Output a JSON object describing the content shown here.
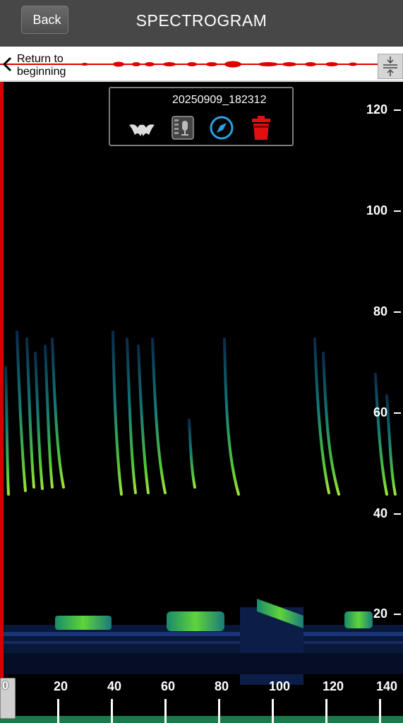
{
  "header": {
    "back_label": "Back",
    "title": "SPECTROGRAM"
  },
  "overview": {
    "return_label_line1": "Return to",
    "return_label_line2": "beginning"
  },
  "file_info": {
    "filename": "20250909_182312",
    "icons": [
      "bat-icon",
      "recorder-icon",
      "compass-icon",
      "trash-icon"
    ]
  },
  "y_axis": {
    "labels": [
      "120",
      "100",
      "80",
      "60",
      "40",
      "20"
    ]
  },
  "x_axis": {
    "labels": [
      "0",
      "20",
      "40",
      "60",
      "80",
      "100",
      "120",
      "140"
    ]
  },
  "colors": {
    "cursor": "#d40000",
    "accent_blue": "#29a3e0",
    "trash_red": "#e01010",
    "call_green": "#7fd63a"
  }
}
